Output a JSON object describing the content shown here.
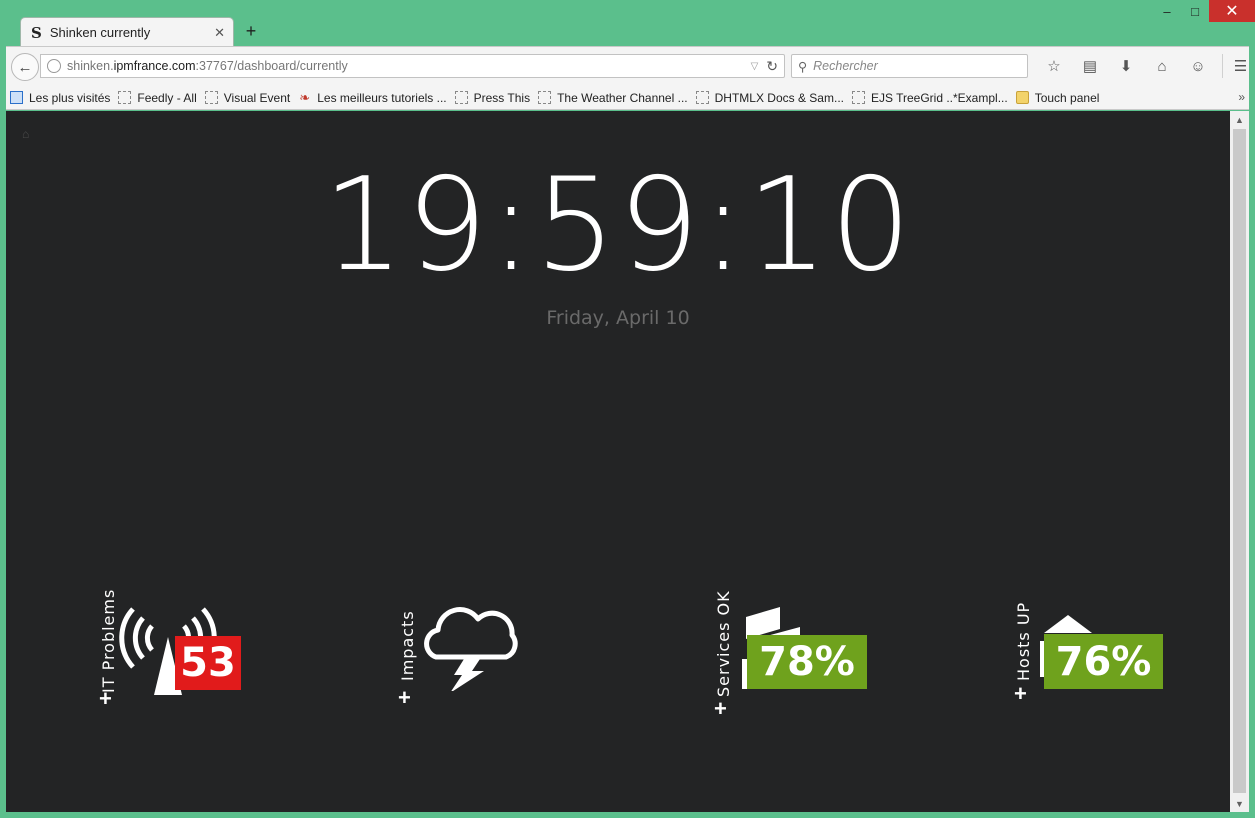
{
  "window": {
    "minimize": "–",
    "maximize": "□",
    "close": "✕"
  },
  "tab": {
    "logo": "S",
    "title": "Shinken currently",
    "close": "✕",
    "new_tab": "+"
  },
  "toolbar": {
    "url_host_prefix": "shinken.",
    "url_host": "ipmfrance.com",
    "url_rest": ":37767/dashboard/currently",
    "search_placeholder": "Rechercher",
    "icons": [
      "bookmark-star-icon",
      "reading-list-icon",
      "download-icon",
      "home-icon",
      "chat-icon",
      "hamburger-menu-icon"
    ]
  },
  "bookmarks": [
    {
      "label": "Les plus visités",
      "icon": "blue"
    },
    {
      "label": "Feedly - All",
      "icon": "page"
    },
    {
      "label": "Visual Event",
      "icon": "page"
    },
    {
      "label": "Les meilleurs tutoriels ...",
      "icon": "red"
    },
    {
      "label": "Press This",
      "icon": "page"
    },
    {
      "label": "The Weather Channel ...",
      "icon": "page"
    },
    {
      "label": "DHTMLX Docs & Sam...",
      "icon": "page"
    },
    {
      "label": "EJS TreeGrid ..*Exampl...",
      "icon": "page"
    },
    {
      "label": "Touch panel",
      "icon": "folder"
    }
  ],
  "dashboard": {
    "time": "19:59:10",
    "date": "Friday, April 10",
    "widgets": {
      "it_problems": {
        "label": "IT Problems",
        "value": "53",
        "color": "#e11b1b"
      },
      "impacts": {
        "label": "Impacts"
      },
      "services_ok": {
        "label": "Services OK",
        "value": "78%",
        "color": "#6fa21d"
      },
      "hosts_up": {
        "label": "Hosts UP",
        "value": "76%",
        "color": "#6fa21d"
      }
    }
  }
}
